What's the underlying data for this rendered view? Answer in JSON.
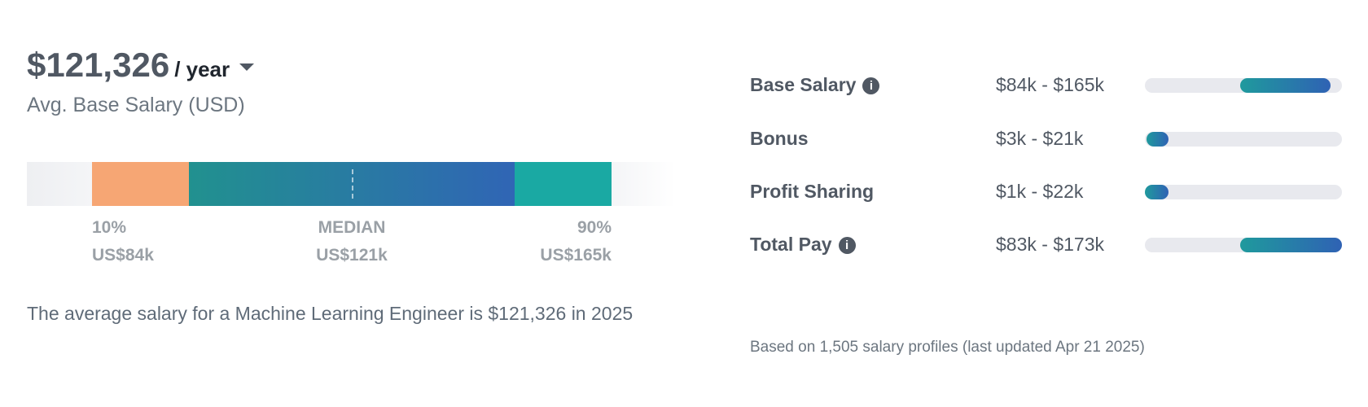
{
  "header": {
    "amount": "$121,326",
    "period": "/ year",
    "subtitle": "Avg. Base Salary (USD)"
  },
  "percentiles": [
    {
      "label": "10%",
      "value": "US$84k"
    },
    {
      "label": "MEDIAN",
      "value": "US$121k"
    },
    {
      "label": "90%",
      "value": "US$165k"
    }
  ],
  "description": "The average salary for a Machine Learning Engineer is $121,326 in 2025",
  "pay_ranges": [
    {
      "label": "Base Salary",
      "range": "$84k - $165k"
    },
    {
      "label": "Bonus",
      "range": "$3k - $21k"
    },
    {
      "label": "Profit Sharing",
      "range": "$1k - $22k"
    },
    {
      "label": "Total Pay",
      "range": "$83k - $173k"
    }
  ],
  "footer": "Based on 1,505 salary profiles (last updated Apr 21 2025)"
}
